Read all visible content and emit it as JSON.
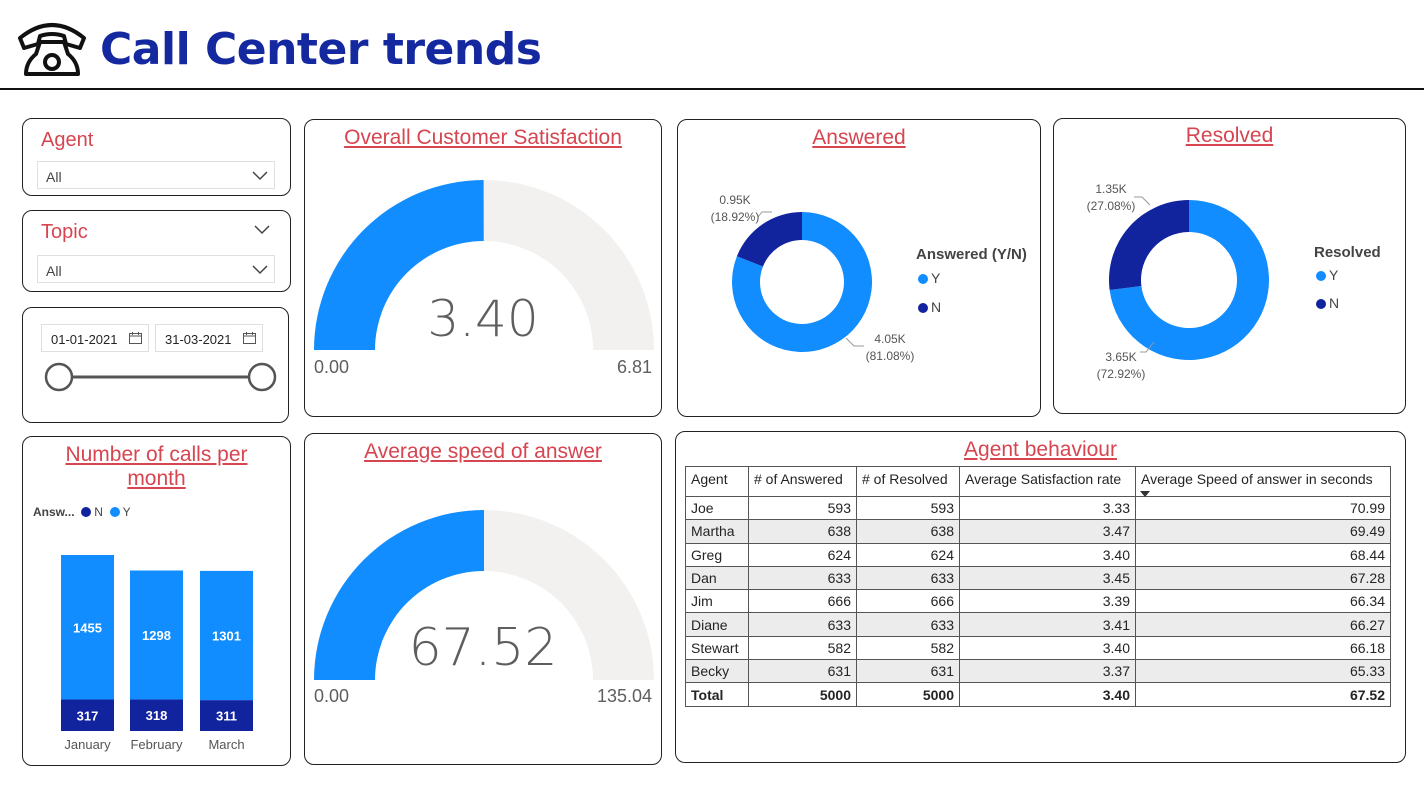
{
  "header": {
    "title": "Call Center trends",
    "icon": "telephone-icon"
  },
  "filters": {
    "agent": {
      "label": "Agent",
      "value": "All"
    },
    "topic": {
      "label": "Topic",
      "value": "All"
    },
    "date": {
      "start": "01-01-2021",
      "end": "31-03-2021"
    }
  },
  "colors": {
    "accent": "#118dff",
    "dark": "#12239e",
    "title_red": "#d64550",
    "track": "#f2f1f0"
  },
  "satisfaction": {
    "title": "Overall Customer Satisfaction",
    "value": "3.40",
    "min": "0.00",
    "max": "6.81",
    "fraction": 0.5
  },
  "speed": {
    "title": "Average speed of answer",
    "value": "67.52",
    "min": "0.00",
    "max": "135.04",
    "fraction": 0.5
  },
  "answered": {
    "title": "Answered",
    "legend_title": "Answered (Y/N)",
    "legend": [
      "Y",
      "N"
    ],
    "y_label_1": "4.05K",
    "y_label_2": "(81.08%)",
    "n_label_1": "0.95K",
    "n_label_2": "(18.92%)"
  },
  "resolved": {
    "title": "Resolved",
    "legend_title": "Resolved",
    "legend": [
      "Y",
      "N"
    ],
    "y_label_1": "3.65K",
    "y_label_2": "(72.92%)",
    "n_label_1": "1.35K",
    "n_label_2": "(27.08%)"
  },
  "calls": {
    "title_1": "Number of calls per",
    "title_2": "month",
    "legend_title": "Answ...",
    "legend": [
      "N",
      "Y"
    ]
  },
  "agent_table": {
    "title": "Agent behaviour",
    "headers": [
      "Agent",
      "# of Answered",
      "# of Resolved",
      "Average Satisfaction rate",
      "Average Speed of answer in seconds"
    ],
    "rows": [
      [
        "Joe",
        "593",
        "593",
        "3.33",
        "70.99"
      ],
      [
        "Martha",
        "638",
        "638",
        "3.47",
        "69.49"
      ],
      [
        "Greg",
        "624",
        "624",
        "3.40",
        "68.44"
      ],
      [
        "Dan",
        "633",
        "633",
        "3.45",
        "67.28"
      ],
      [
        "Jim",
        "666",
        "666",
        "3.39",
        "66.34"
      ],
      [
        "Diane",
        "633",
        "633",
        "3.41",
        "66.27"
      ],
      [
        "Stewart",
        "582",
        "582",
        "3.40",
        "66.18"
      ],
      [
        "Becky",
        "631",
        "631",
        "3.37",
        "65.33"
      ]
    ],
    "total": [
      "Total",
      "5000",
      "5000",
      "3.40",
      "67.52"
    ]
  },
  "chart_data": [
    {
      "type": "gauge",
      "title": "Overall Customer Satisfaction",
      "value": 3.4,
      "min": 0.0,
      "max": 6.81
    },
    {
      "type": "gauge",
      "title": "Average speed of answer",
      "value": 67.52,
      "min": 0.0,
      "max": 135.04
    },
    {
      "type": "pie",
      "title": "Answered",
      "categories": [
        "Y",
        "N"
      ],
      "values": [
        4050,
        950
      ],
      "percent": [
        81.08,
        18.92
      ],
      "legend_title": "Answered (Y/N)",
      "legend": "right"
    },
    {
      "type": "pie",
      "title": "Resolved",
      "categories": [
        "Y",
        "N"
      ],
      "values": [
        3650,
        1350
      ],
      "percent": [
        72.92,
        27.08
      ],
      "legend_title": "Resolved",
      "legend": "right"
    },
    {
      "type": "bar",
      "title": "Number of calls per month",
      "stacked": true,
      "categories": [
        "January",
        "February",
        "March"
      ],
      "series": [
        {
          "name": "N",
          "values": [
            317,
            318,
            311
          ]
        },
        {
          "name": "Y",
          "values": [
            1455,
            1298,
            1301
          ]
        }
      ],
      "legend_title": "Answ...",
      "legend": "top-left"
    }
  ]
}
